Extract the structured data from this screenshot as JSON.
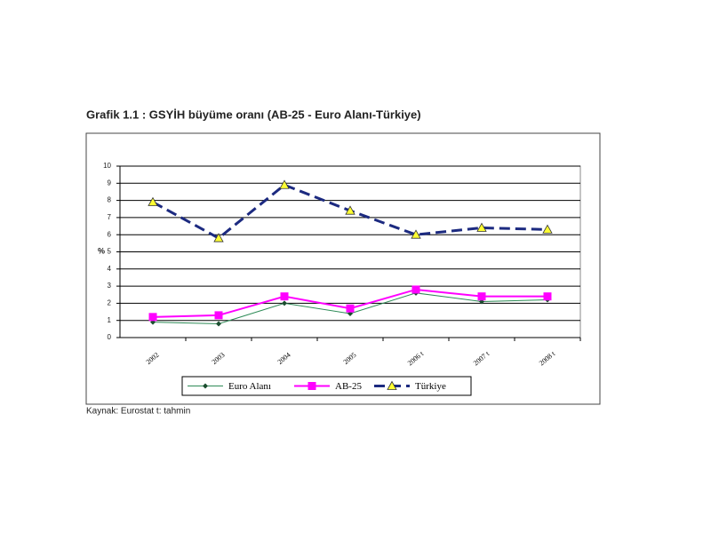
{
  "chart_data": {
    "type": "line",
    "title": "Grafik 1.1 : GSYİH büyüme oranı (AB-25 - Euro Alanı-Türkiye)",
    "ylabel": "%",
    "source": "Kaynak: Eurostat  t: tahmin",
    "categories": [
      "2002",
      "2003",
      "2004",
      "2005",
      "2006 t",
      "2007 t",
      "2008 t"
    ],
    "series": [
      {
        "name": "Euro Alanı",
        "color": "#2e8b57",
        "marker": "diamond",
        "marker_color": "#1a4d2e",
        "dashed": false,
        "values": [
          0.9,
          0.8,
          2.0,
          1.4,
          2.6,
          2.1,
          2.2
        ]
      },
      {
        "name": "AB-25",
        "color": "#ff00ff",
        "marker": "square",
        "marker_color": "#ff00ff",
        "dashed": false,
        "values": [
          1.2,
          1.3,
          2.4,
          1.7,
          2.8,
          2.4,
          2.4
        ]
      },
      {
        "name": "Türkiye",
        "color": "#1c2a80",
        "marker": "triangle",
        "marker_color": "#ffff33",
        "dashed": true,
        "values": [
          7.9,
          5.8,
          8.9,
          7.4,
          6.0,
          6.4,
          6.3
        ]
      }
    ],
    "ylim": [
      0,
      10
    ],
    "yticks": [
      0,
      1,
      2,
      3,
      4,
      5,
      6,
      7,
      8,
      9,
      10
    ],
    "grid": true,
    "legend": "bottom"
  }
}
